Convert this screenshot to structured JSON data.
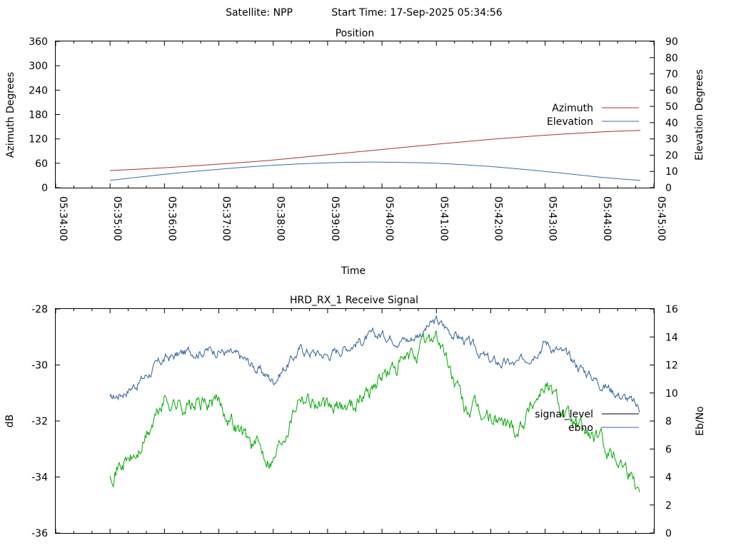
{
  "header": {
    "satellite": "Satellite: NPP",
    "start_time": "Start Time: 17-Sep-2025 05:34:56"
  },
  "chart_data": [
    {
      "type": "line",
      "title": "Position",
      "xlabel": "Time",
      "ylabel": "Azimuth Degrees",
      "y2label": "Elevation Degrees",
      "x_ticks": [
        "05:34:00",
        "05:35:00",
        "05:36:00",
        "05:37:00",
        "05:38:00",
        "05:39:00",
        "05:40:00",
        "05:41:00",
        "05:42:00",
        "05:43:00",
        "05:44:00",
        "05:45:00"
      ],
      "xlim": [
        "05:34:00",
        "05:45:00"
      ],
      "ylim": [
        0,
        360
      ],
      "y_ticks": [
        0,
        60,
        120,
        180,
        240,
        300,
        360
      ],
      "y2lim": [
        0,
        90
      ],
      "y2_ticks": [
        0,
        10,
        20,
        30,
        40,
        50,
        60,
        70,
        80,
        90
      ],
      "legend_position": "right",
      "series": [
        {
          "name": "Azimuth",
          "axis": "y",
          "color": "#b03030",
          "x": [
            "05:35:00",
            "05:36:00",
            "05:37:00",
            "05:38:00",
            "05:39:00",
            "05:40:00",
            "05:41:00",
            "05:42:00",
            "05:43:00",
            "05:44:00",
            "05:44:45"
          ],
          "values": [
            42,
            49,
            58,
            68,
            81,
            94,
            107,
            119,
            129,
            137,
            141
          ]
        },
        {
          "name": "Elevation",
          "axis": "y2",
          "color": "#3070b0",
          "x": [
            "05:35:00",
            "05:36:00",
            "05:37:00",
            "05:38:00",
            "05:39:00",
            "05:39:30",
            "05:40:00",
            "05:41:00",
            "05:42:00",
            "05:43:00",
            "05:44:00",
            "05:44:45"
          ],
          "values": [
            4.5,
            8.2,
            11.3,
            13.8,
            15.3,
            15.6,
            15.7,
            15,
            13,
            10,
            6.5,
            4.5
          ]
        }
      ]
    },
    {
      "type": "line",
      "title": "HRD_RX_1 Receive Signal",
      "ylabel": "dB",
      "y2label": "Eb/No",
      "xlim": [
        "05:34:00",
        "05:45:00"
      ],
      "ylim": [
        -36,
        -28
      ],
      "y_ticks": [
        -36,
        -34,
        -32,
        -30,
        -28
      ],
      "y2lim": [
        0,
        16
      ],
      "y2_ticks": [
        0,
        2,
        4,
        6,
        8,
        10,
        12,
        14,
        16
      ],
      "legend_position": "right",
      "series": [
        {
          "name": "signal_level",
          "axis": "y",
          "color": "#000000",
          "x": [],
          "values": []
        },
        {
          "name": "ebno",
          "axis": "y2",
          "color": "#3060a0",
          "x": [
            "05:35:00",
            "05:35:30",
            "05:36:00",
            "05:36:30",
            "05:37:00",
            "05:37:30",
            "05:38:00",
            "05:38:30",
            "05:39:00",
            "05:39:30",
            "05:40:00",
            "05:40:30",
            "05:41:00",
            "05:41:30",
            "05:42:00",
            "05:42:30",
            "05:43:00",
            "05:43:30",
            "05:44:00",
            "05:44:30",
            "05:44:45"
          ],
          "values": [
            9.5,
            10.7,
            12.4,
            13,
            13.1,
            12.3,
            10.9,
            13.1,
            12.7,
            13.6,
            14.2,
            13.8,
            15.1,
            13.8,
            12.2,
            12,
            13.7,
            12.3,
            10.8,
            9.6,
            8.8
          ]
        },
        {
          "name": "",
          "axis": "y2",
          "color": "#00aa00",
          "x": [
            "05:35:00",
            "05:35:30",
            "05:36:00",
            "05:36:30",
            "05:37:00",
            "05:37:30",
            "05:38:00",
            "05:38:30",
            "05:39:00",
            "05:39:30",
            "05:40:00",
            "05:40:30",
            "05:41:00",
            "05:41:30",
            "05:42:00",
            "05:42:30",
            "05:43:00",
            "05:43:30",
            "05:44:00",
            "05:44:30",
            "05:44:45"
          ],
          "values": [
            4.5,
            5.5,
            9.5,
            9,
            9.3,
            6.8,
            5.3,
            10.2,
            8.7,
            9.3,
            11.2,
            12.3,
            14.3,
            9,
            8.2,
            7.5,
            10.8,
            7.8,
            6.5,
            4.8,
            3.3
          ]
        }
      ]
    }
  ]
}
